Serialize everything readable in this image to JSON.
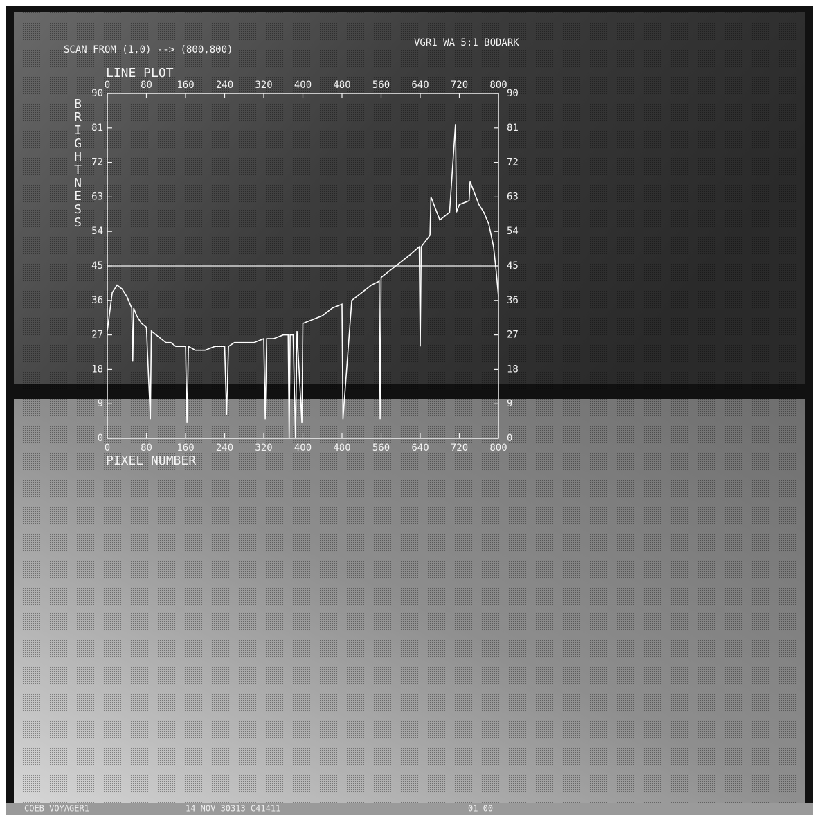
{
  "header": {
    "scan": "SCAN FROM (1,0) --> (800,800)",
    "image_id": "VGR1 WA 5:1 BODARK"
  },
  "footer": [
    "COEB VOYAGER1",
    "14 NOV 30313 C41411",
    "01 00"
  ],
  "chart_data": {
    "type": "line",
    "title": "LINE PLOT",
    "xlabel": "PIXEL NUMBER",
    "ylabel": "BRIGHTNESS",
    "x": [
      0,
      10,
      20,
      30,
      40,
      50,
      52,
      54,
      60,
      70,
      80,
      88,
      90,
      100,
      110,
      120,
      130,
      140,
      150,
      160,
      163,
      166,
      180,
      200,
      220,
      240,
      244,
      248,
      260,
      280,
      300,
      320,
      323,
      326,
      340,
      360,
      370,
      372,
      374,
      380,
      385,
      388,
      398,
      400,
      420,
      440,
      460,
      480,
      482,
      500,
      520,
      540,
      556,
      558,
      560,
      580,
      600,
      620,
      638,
      640,
      642,
      660,
      662,
      680,
      700,
      712,
      714,
      720,
      740,
      742,
      760,
      770,
      780,
      790,
      795,
      800
    ],
    "values": [
      28,
      38,
      40,
      39,
      37,
      34,
      20,
      34,
      32,
      30,
      29,
      5,
      28,
      27,
      26,
      25,
      25,
      24,
      24,
      24,
      4,
      24,
      23,
      23,
      24,
      24,
      6,
      24,
      25,
      25,
      25,
      26,
      5,
      26,
      26,
      27,
      27,
      0,
      27,
      27,
      0,
      28,
      4,
      30,
      31,
      32,
      34,
      35,
      5,
      36,
      38,
      40,
      41,
      5,
      42,
      44,
      46,
      48,
      50,
      24,
      50,
      53,
      63,
      57,
      59,
      82,
      59,
      61,
      62,
      67,
      61,
      59,
      56,
      50,
      44,
      37
    ],
    "color": "#ffffff",
    "hline": 45,
    "xlim": [
      0,
      800
    ],
    "xticks": [
      0,
      80,
      160,
      240,
      320,
      400,
      480,
      560,
      640,
      720,
      800
    ],
    "ylim": [
      0,
      90
    ],
    "yticks": [
      0,
      9,
      18,
      27,
      36,
      45,
      54,
      63,
      72,
      81,
      90
    ]
  }
}
